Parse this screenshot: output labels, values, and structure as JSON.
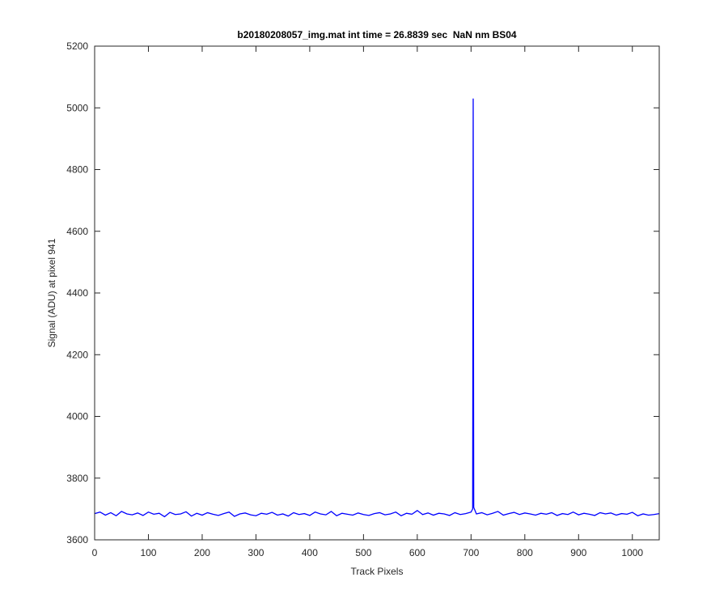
{
  "chart_data": {
    "type": "line",
    "title": "b20180208057_img.mat int time = 26.8839 sec  NaN nm BS04",
    "x_label": "Track Pixels",
    "y_label": "Signal (ADU) at pixel 941",
    "xlim": [
      0,
      1050
    ],
    "ylim": [
      3600,
      5200
    ],
    "xticks": [
      0,
      100,
      200,
      300,
      400,
      500,
      600,
      700,
      800,
      900,
      1000
    ],
    "yticks": [
      3600,
      3800,
      4000,
      4200,
      4400,
      4600,
      4800,
      5000,
      5200
    ],
    "grid": false,
    "x": [
      0,
      10,
      20,
      30,
      40,
      50,
      60,
      70,
      80,
      90,
      100,
      110,
      120,
      130,
      140,
      150,
      160,
      170,
      180,
      190,
      200,
      210,
      220,
      230,
      240,
      250,
      260,
      270,
      280,
      290,
      300,
      310,
      320,
      330,
      340,
      350,
      360,
      370,
      380,
      390,
      400,
      410,
      420,
      430,
      440,
      450,
      460,
      470,
      480,
      490,
      500,
      510,
      520,
      530,
      540,
      550,
      560,
      570,
      580,
      590,
      600,
      610,
      620,
      630,
      640,
      650,
      660,
      670,
      680,
      690,
      700,
      703,
      704,
      705,
      710,
      720,
      730,
      740,
      750,
      760,
      770,
      780,
      790,
      800,
      810,
      820,
      830,
      840,
      850,
      860,
      870,
      880,
      890,
      900,
      910,
      920,
      930,
      940,
      950,
      960,
      970,
      980,
      990,
      1000,
      1010,
      1020,
      1030,
      1040,
      1050
    ],
    "series": [
      {
        "name": "signal",
        "color": "#0000ff",
        "values": [
          3685,
          3690,
          3680,
          3688,
          3678,
          3692,
          3684,
          3681,
          3687,
          3679,
          3690,
          3683,
          3686,
          3675,
          3689,
          3682,
          3684,
          3691,
          3677,
          3686,
          3680,
          3688,
          3683,
          3679,
          3685,
          3690,
          3676,
          3684,
          3687,
          3681,
          3678,
          3686,
          3683,
          3689,
          3680,
          3684,
          3677,
          3688,
          3682,
          3685,
          3679,
          3690,
          3684,
          3681,
          3692,
          3678,
          3686,
          3683,
          3680,
          3687,
          3682,
          3679,
          3685,
          3688,
          3681,
          3684,
          3690,
          3678,
          3686,
          3683,
          3695,
          3682,
          3687,
          3680,
          3686,
          3684,
          3679,
          3688,
          3682,
          3685,
          3690,
          3700,
          5030,
          3705,
          3684,
          3688,
          3681,
          3686,
          3692,
          3680,
          3685,
          3689,
          3682,
          3687,
          3684,
          3680,
          3686,
          3683,
          3688,
          3679,
          3685,
          3682,
          3690,
          3681,
          3686,
          3683,
          3679,
          3688,
          3684,
          3687,
          3680,
          3685,
          3683,
          3689,
          3678,
          3684,
          3680,
          3682,
          3685
        ]
      }
    ]
  }
}
